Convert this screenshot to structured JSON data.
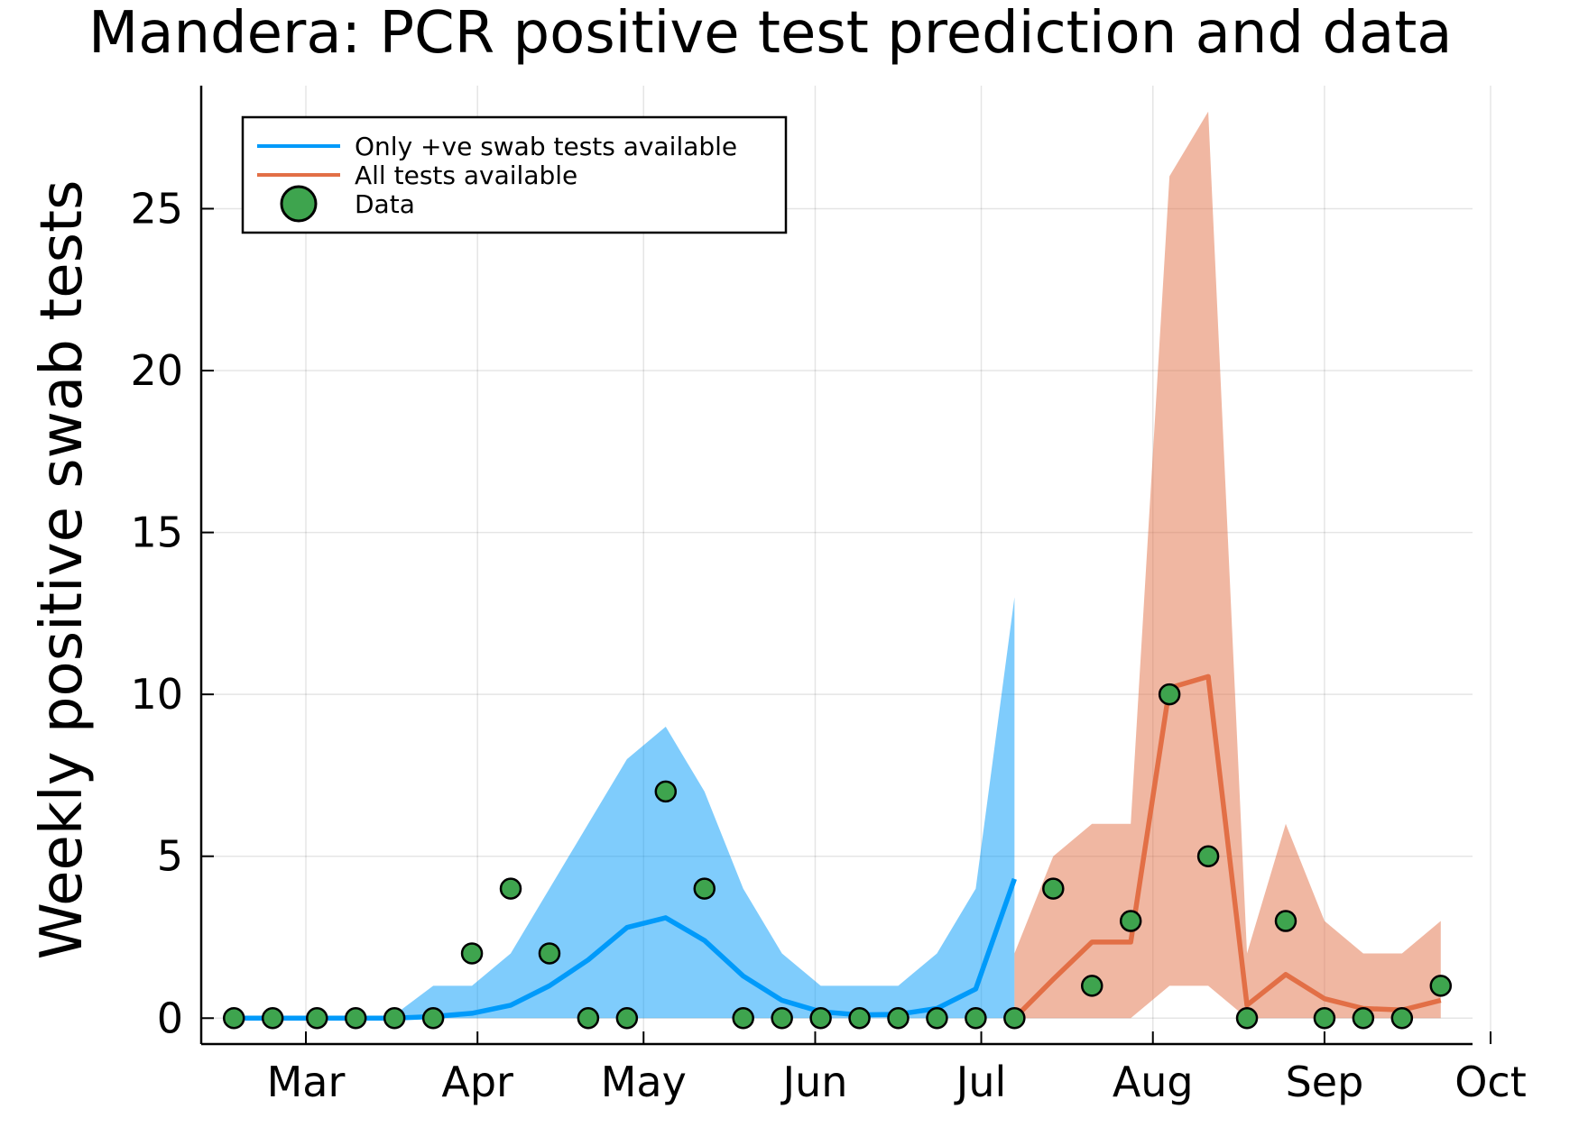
{
  "chart_data": {
    "type": "line",
    "title": "Mandera: PCR positive test prediction and data",
    "xlabel": "",
    "ylabel": "Weekly positive swab tests",
    "x_ticks": [
      "Mar",
      "Apr",
      "May",
      "Jun",
      "Jul",
      "Aug",
      "Sep",
      "Oct"
    ],
    "y_ticks": [
      0,
      5,
      10,
      15,
      20,
      25
    ],
    "ylim": [
      -0.8,
      28.8
    ],
    "grid": true,
    "legend_position": "top-left",
    "colors": {
      "fit": "#009AFA",
      "forecast": "#E26F46",
      "data": "#3EA44E"
    },
    "series": [
      {
        "name": "Only +ve swab tests available",
        "kind": "line_with_band",
        "color": "#009AFA",
        "x": [
          "Feb 17",
          "Feb 24",
          "Mar 3",
          "Mar 10",
          "Mar 17",
          "Mar 24",
          "Mar 31",
          "Apr 7",
          "Apr 14",
          "Apr 21",
          "Apr 28",
          "May 5",
          "May 12",
          "May 19",
          "May 26",
          "Jun 2",
          "Jun 9",
          "Jun 16",
          "Jun 23",
          "Jun 30",
          "Jul 7"
        ],
        "values": [
          0,
          0,
          0,
          0,
          0,
          0.05,
          0.15,
          0.4,
          1.0,
          1.8,
          2.8,
          3.1,
          2.4,
          1.3,
          0.55,
          0.2,
          0.1,
          0.12,
          0.3,
          0.9,
          4.3
        ],
        "lower": [
          0,
          0,
          0,
          0,
          0,
          0,
          0,
          0,
          0,
          0,
          0,
          0,
          0,
          0,
          0,
          0,
          0,
          0,
          0,
          0,
          0
        ],
        "upper": [
          0,
          0,
          0,
          0,
          0.1,
          1,
          1,
          2,
          4,
          6,
          8,
          9,
          7,
          4,
          2,
          1,
          1,
          1,
          2,
          4,
          13
        ]
      },
      {
        "name": "All tests available",
        "kind": "line_with_band",
        "color": "#E26F46",
        "x": [
          "Jul 7",
          "Jul 14",
          "Jul 21",
          "Jul 28",
          "Aug 4",
          "Aug 11",
          "Aug 18",
          "Aug 25",
          "Sep 1",
          "Sep 8",
          "Sep 15",
          "Sep 22"
        ],
        "values": [
          0,
          1.2,
          2.35,
          2.35,
          10.2,
          10.55,
          0.4,
          1.35,
          0.6,
          0.3,
          0.25,
          0.55
        ],
        "lower": [
          0,
          0,
          0,
          0,
          1,
          1,
          0,
          0,
          0,
          0,
          0,
          0
        ],
        "upper": [
          2,
          5,
          6,
          6,
          26,
          28,
          2,
          6,
          3,
          2,
          2,
          3
        ]
      },
      {
        "name": "Data",
        "kind": "scatter",
        "color": "#3EA44E",
        "x": [
          "Feb 17",
          "Feb 24",
          "Mar 3",
          "Mar 10",
          "Mar 17",
          "Mar 24",
          "Mar 31",
          "Apr 7",
          "Apr 14",
          "Apr 21",
          "Apr 28",
          "May 5",
          "May 12",
          "May 19",
          "May 26",
          "Jun 2",
          "Jun 9",
          "Jun 16",
          "Jun 23",
          "Jun 30",
          "Jul 7",
          "Jul 14",
          "Jul 21",
          "Jul 28",
          "Aug 4",
          "Aug 11",
          "Aug 18",
          "Aug 25",
          "Sep 1",
          "Sep 8",
          "Sep 15",
          "Sep 22"
        ],
        "values": [
          0,
          0,
          0,
          0,
          0,
          0,
          2,
          4,
          2,
          0,
          0,
          7,
          4,
          0,
          0,
          0,
          0,
          0,
          0,
          0,
          0,
          4,
          1,
          3,
          10,
          5,
          0,
          3,
          0,
          0,
          0,
          1
        ]
      }
    ]
  }
}
